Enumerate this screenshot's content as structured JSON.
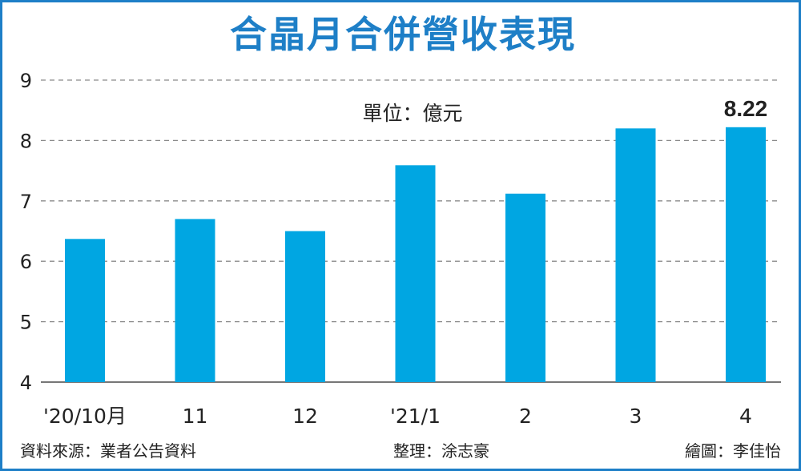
{
  "chart_data": {
    "type": "bar",
    "title": "合晶月合併營收表現",
    "unit": "單位：億元",
    "categories": [
      "'20/10月",
      "11",
      "12",
      "'21/1",
      "2",
      "3",
      "4"
    ],
    "values": [
      6.37,
      6.7,
      6.5,
      7.59,
      7.12,
      8.2,
      8.22
    ],
    "data_labels": [
      {
        "category": "4",
        "text": "8.22"
      }
    ],
    "ylim": [
      4,
      9
    ],
    "yticks": [
      "4",
      "5",
      "6",
      "7",
      "8",
      "9"
    ],
    "grid": true,
    "xlabel": "",
    "ylabel": "",
    "bar_color": "#00a6e2",
    "title_color": "#1e7fc7"
  },
  "footer": {
    "source": "資料來源：業者公告資料",
    "editor": "整理：涂志豪",
    "artist": "繪圖：李佳怡"
  }
}
